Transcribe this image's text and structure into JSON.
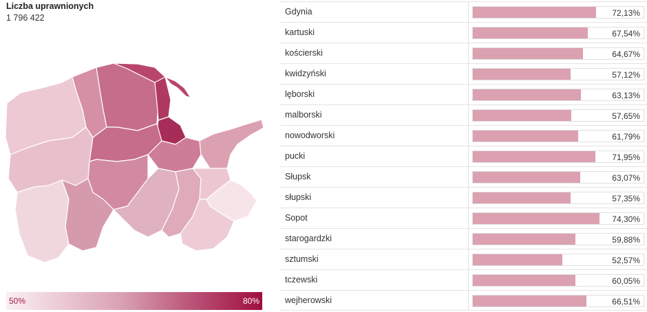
{
  "panel": {
    "title": "Liczba uprawnionych",
    "value": "1 796 422"
  },
  "legend": {
    "min_label": "50%",
    "max_label": "80%",
    "min_color": "#fbeff3",
    "max_color": "#9e0f3e"
  },
  "colors": {
    "bar": "#dba1b1",
    "grid": "#e3e3e3"
  },
  "chart_data": {
    "type": "bar",
    "orientation": "horizontal",
    "categories": [
      "Gdynia",
      "kartuski",
      "kościerski",
      "kwidzyński",
      "lęborski",
      "malborski",
      "nowodworski",
      "pucki",
      "Słupsk",
      "słupski",
      "Sopot",
      "starogardzki",
      "sztumski",
      "tczewski",
      "wejherowski"
    ],
    "values": [
      72.13,
      67.54,
      64.67,
      57.12,
      63.13,
      57.65,
      61.79,
      71.95,
      63.07,
      57.35,
      74.3,
      59.88,
      52.57,
      60.05,
      66.51
    ],
    "value_labels": [
      "72,13%",
      "67,54%",
      "64,67%",
      "57,12%",
      "63,13%",
      "57,65%",
      "61,79%",
      "71,95%",
      "63,07%",
      "57,35%",
      "74,30%",
      "59,88%",
      "52,57%",
      "60,05%",
      "66,51%"
    ],
    "xlim": [
      0,
      100
    ]
  }
}
